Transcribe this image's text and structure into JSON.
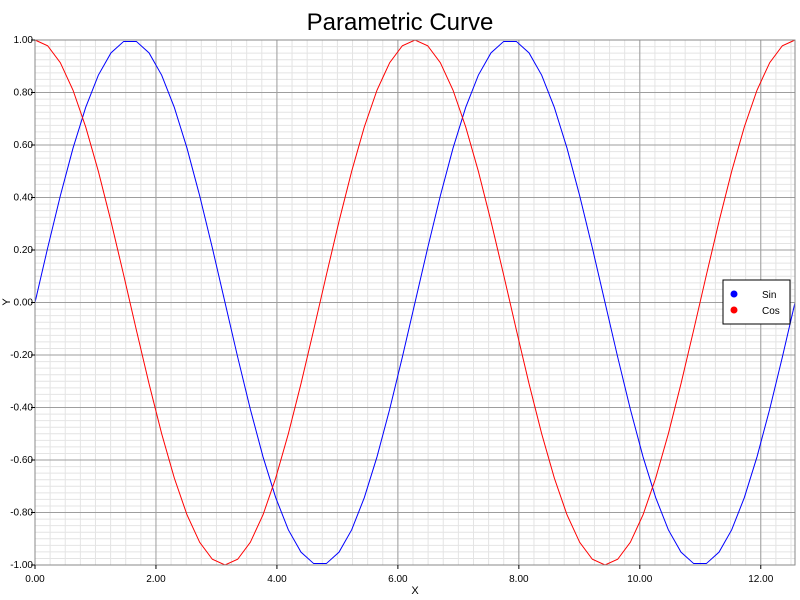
{
  "chart_data": {
    "type": "line",
    "title": "Parametric Curve",
    "xlabel": "X",
    "ylabel": "Y",
    "xlim": [
      0,
      12.566
    ],
    "ylim": [
      -1,
      1
    ],
    "x_ticks": [
      0,
      2,
      4,
      6,
      8,
      10,
      12
    ],
    "x_tick_labels": [
      "0.00",
      "2.00",
      "4.00",
      "6.00",
      "8.00",
      "10.00",
      "12.00"
    ],
    "y_ticks": [
      -1,
      -0.8,
      -0.6,
      -0.4,
      -0.2,
      0,
      0.2,
      0.4,
      0.6,
      0.8,
      1
    ],
    "y_tick_labels": [
      "-1.00",
      "-0.80",
      "-0.60",
      "-0.40",
      "-0.20",
      "0.00",
      "0.20",
      "0.40",
      "0.60",
      "0.80",
      "1.00"
    ],
    "grid": true,
    "legend_position": "right",
    "series": [
      {
        "name": "Sin",
        "color": "#0000ff",
        "x": [
          0.0,
          0.2094,
          0.4189,
          0.6283,
          0.8378,
          1.0472,
          1.2566,
          1.4661,
          1.6755,
          1.885,
          2.0944,
          2.3038,
          2.5133,
          2.7227,
          2.9322,
          3.1416,
          3.351,
          3.5605,
          3.7699,
          3.9794,
          4.1888,
          4.3982,
          4.6077,
          4.8171,
          5.0265,
          5.236,
          5.4454,
          5.6549,
          5.8643,
          6.0737,
          6.2832,
          6.4926,
          6.7021,
          6.9115,
          7.1209,
          7.3304,
          7.5398,
          7.7493,
          7.9587,
          8.1681,
          8.3776,
          8.587,
          8.7965,
          9.0059,
          9.2153,
          9.4248,
          9.6342,
          9.8437,
          10.0531,
          10.2625,
          10.472,
          10.6814,
          10.8909,
          11.1003,
          11.3097,
          11.5192,
          11.7286,
          11.9381,
          12.1475,
          12.3569,
          12.5664
        ],
        "y": [
          0.0,
          0.2079,
          0.4067,
          0.5878,
          0.7431,
          0.866,
          0.9511,
          0.9945,
          0.9945,
          0.9511,
          0.866,
          0.7431,
          0.5878,
          0.4067,
          0.2079,
          0.0,
          -0.2079,
          -0.4067,
          -0.5878,
          -0.7431,
          -0.866,
          -0.9511,
          -0.9945,
          -0.9945,
          -0.9511,
          -0.866,
          -0.7431,
          -0.5878,
          -0.4067,
          -0.2079,
          0.0,
          0.2079,
          0.4067,
          0.5878,
          0.7431,
          0.866,
          0.9511,
          0.9945,
          0.9945,
          0.9511,
          0.866,
          0.7431,
          0.5878,
          0.4067,
          0.2079,
          0.0,
          -0.2079,
          -0.4067,
          -0.5878,
          -0.7431,
          -0.866,
          -0.9511,
          -0.9945,
          -0.9945,
          -0.9511,
          -0.866,
          -0.7431,
          -0.5878,
          -0.4067,
          -0.2079,
          0.0
        ]
      },
      {
        "name": "Cos",
        "color": "#ff0000",
        "x": [
          0.0,
          0.2094,
          0.4189,
          0.6283,
          0.8378,
          1.0472,
          1.2566,
          1.4661,
          1.6755,
          1.885,
          2.0944,
          2.3038,
          2.5133,
          2.7227,
          2.9322,
          3.1416,
          3.351,
          3.5605,
          3.7699,
          3.9794,
          4.1888,
          4.3982,
          4.6077,
          4.8171,
          5.0265,
          5.236,
          5.4454,
          5.6549,
          5.8643,
          6.0737,
          6.2832,
          6.4926,
          6.7021,
          6.9115,
          7.1209,
          7.3304,
          7.5398,
          7.7493,
          7.9587,
          8.1681,
          8.3776,
          8.587,
          8.7965,
          9.0059,
          9.2153,
          9.4248,
          9.6342,
          9.8437,
          10.0531,
          10.2625,
          10.472,
          10.6814,
          10.8909,
          11.1003,
          11.3097,
          11.5192,
          11.7286,
          11.9381,
          12.1475,
          12.3569,
          12.5664
        ],
        "y": [
          1.0,
          0.9781,
          0.9135,
          0.809,
          0.6691,
          0.5,
          0.309,
          0.1045,
          -0.1045,
          -0.309,
          -0.5,
          -0.6691,
          -0.809,
          -0.9135,
          -0.9781,
          -1.0,
          -0.9781,
          -0.9135,
          -0.809,
          -0.6691,
          -0.5,
          -0.309,
          -0.1045,
          0.1045,
          0.309,
          0.5,
          0.6691,
          0.809,
          0.9135,
          0.9781,
          1.0,
          0.9781,
          0.9135,
          0.809,
          0.6691,
          0.5,
          0.309,
          0.1045,
          -0.1045,
          -0.309,
          -0.5,
          -0.6691,
          -0.809,
          -0.9135,
          -0.9781,
          -1.0,
          -0.9781,
          -0.9135,
          -0.809,
          -0.6691,
          -0.5,
          -0.309,
          -0.1045,
          0.1045,
          0.309,
          0.5,
          0.6691,
          0.809,
          0.9135,
          0.9781,
          1.0
        ]
      }
    ]
  }
}
